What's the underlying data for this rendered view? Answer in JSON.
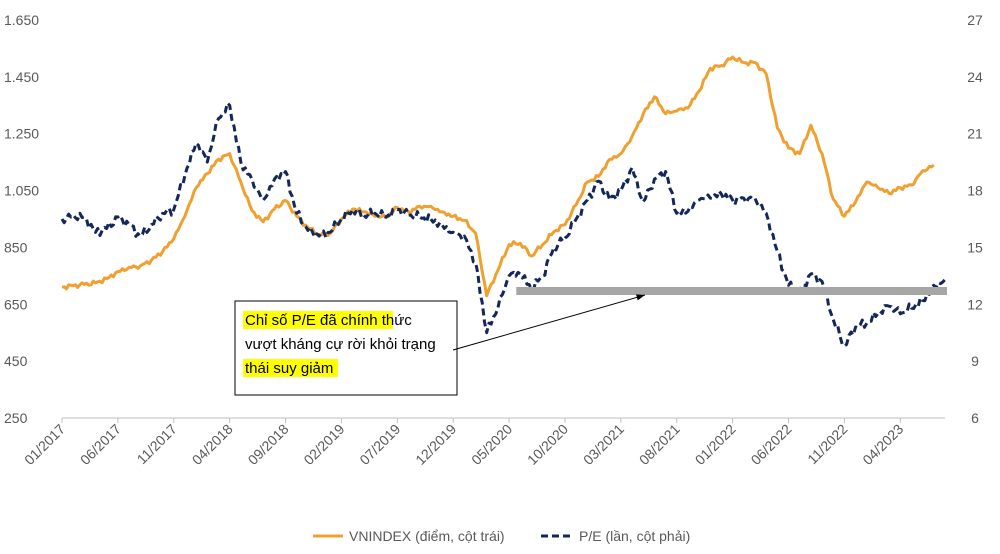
{
  "chart_data": {
    "type": "line",
    "left_axis": {
      "ylim": [
        250,
        1650
      ],
      "ticks": [
        "1.650",
        "1.450",
        "1.250",
        "1.050",
        "850",
        "650",
        "450",
        "250"
      ],
      "tick_values": [
        1650,
        1450,
        1250,
        1050,
        850,
        650,
        450,
        250
      ]
    },
    "right_axis": {
      "ylim": [
        6,
        27
      ],
      "ticks": [
        "27",
        "24",
        "21",
        "18",
        "15",
        "12",
        "9",
        "6"
      ],
      "tick_values": [
        27,
        24,
        21,
        18,
        15,
        12,
        9,
        6
      ]
    },
    "x_ticks": [
      "01/2017",
      "06/2017",
      "11/2017",
      "04/2018",
      "09/2018",
      "02/2019",
      "07/2019",
      "12/2019",
      "05/2020",
      "10/2020",
      "03/2021",
      "08/2021",
      "01/2022",
      "06/2022",
      "11/2022",
      "04/2023"
    ],
    "x_range": [
      "2017-01",
      "2023-08"
    ],
    "grid": false,
    "legend_position": "bottom",
    "series": [
      {
        "name": "VNINDEX (điểm, cột trái)",
        "axis": "left",
        "color": "#F0A030",
        "style": "solid",
        "points": [
          [
            "2017-01",
            710
          ],
          [
            "2017-02",
            715
          ],
          [
            "2017-03",
            720
          ],
          [
            "2017-04",
            725
          ],
          [
            "2017-05",
            740
          ],
          [
            "2017-06",
            765
          ],
          [
            "2017-07",
            780
          ],
          [
            "2017-08",
            785
          ],
          [
            "2017-09",
            805
          ],
          [
            "2017-10",
            835
          ],
          [
            "2017-11",
            880
          ],
          [
            "2017-12",
            960
          ],
          [
            "2018-01",
            1060
          ],
          [
            "2018-02",
            1110
          ],
          [
            "2018-03",
            1160
          ],
          [
            "2018-04",
            1180
          ],
          [
            "2018-05",
            1080
          ],
          [
            "2018-06",
            980
          ],
          [
            "2018-07",
            940
          ],
          [
            "2018-08",
            985
          ],
          [
            "2018-09",
            1015
          ],
          [
            "2018-10",
            960
          ],
          [
            "2018-11",
            920
          ],
          [
            "2018-12",
            895
          ],
          [
            "2019-01",
            900
          ],
          [
            "2019-02",
            950
          ],
          [
            "2019-03",
            985
          ],
          [
            "2019-04",
            975
          ],
          [
            "2019-05",
            960
          ],
          [
            "2019-06",
            955
          ],
          [
            "2019-07",
            990
          ],
          [
            "2019-08",
            975
          ],
          [
            "2019-09",
            995
          ],
          [
            "2019-10",
            995
          ],
          [
            "2019-11",
            975
          ],
          [
            "2019-12",
            960
          ],
          [
            "2020-01",
            945
          ],
          [
            "2020-02",
            900
          ],
          [
            "2020-03",
            680
          ],
          [
            "2020-04",
            770
          ],
          [
            "2020-05",
            860
          ],
          [
            "2020-06",
            865
          ],
          [
            "2020-07",
            820
          ],
          [
            "2020-08",
            860
          ],
          [
            "2020-09",
            905
          ],
          [
            "2020-10",
            930
          ],
          [
            "2020-11",
            1000
          ],
          [
            "2020-12",
            1080
          ],
          [
            "2021-01",
            1100
          ],
          [
            "2021-02",
            1160
          ],
          [
            "2021-03",
            1180
          ],
          [
            "2021-04",
            1240
          ],
          [
            "2021-05",
            1320
          ],
          [
            "2021-06",
            1380
          ],
          [
            "2021-07",
            1320
          ],
          [
            "2021-08",
            1330
          ],
          [
            "2021-09",
            1340
          ],
          [
            "2021-10",
            1400
          ],
          [
            "2021-11",
            1480
          ],
          [
            "2021-12",
            1490
          ],
          [
            "2022-01",
            1520
          ],
          [
            "2022-02",
            1500
          ],
          [
            "2022-03",
            1500
          ],
          [
            "2022-04",
            1460
          ],
          [
            "2022-05",
            1270
          ],
          [
            "2022-06",
            1200
          ],
          [
            "2022-07",
            1180
          ],
          [
            "2022-08",
            1280
          ],
          [
            "2022-09",
            1180
          ],
          [
            "2022-10",
            1020
          ],
          [
            "2022-11",
            960
          ],
          [
            "2022-12",
            1010
          ],
          [
            "2023-01",
            1080
          ],
          [
            "2023-02",
            1060
          ],
          [
            "2023-03",
            1040
          ],
          [
            "2023-04",
            1060
          ],
          [
            "2023-05",
            1070
          ],
          [
            "2023-06",
            1120
          ],
          [
            "2023-07",
            1140
          ]
        ]
      },
      {
        "name": "P/E (lần, cột phải)",
        "axis": "right",
        "color": "#14275A",
        "style": "dashed",
        "points": [
          [
            "2017-01",
            16.5
          ],
          [
            "2017-02",
            16.7
          ],
          [
            "2017-03",
            16.6
          ],
          [
            "2017-04",
            15.8
          ],
          [
            "2017-05",
            16.0
          ],
          [
            "2017-06",
            16.6
          ],
          [
            "2017-07",
            16.2
          ],
          [
            "2017-08",
            15.6
          ],
          [
            "2017-09",
            16.2
          ],
          [
            "2017-10",
            16.8
          ],
          [
            "2017-11",
            17.0
          ],
          [
            "2017-12",
            18.8
          ],
          [
            "2018-01",
            20.5
          ],
          [
            "2018-02",
            19.5
          ],
          [
            "2018-03",
            21.8
          ],
          [
            "2018-04",
            22.5
          ],
          [
            "2018-05",
            19.5
          ],
          [
            "2018-06",
            18.6
          ],
          [
            "2018-07",
            17.5
          ],
          [
            "2018-08",
            18.6
          ],
          [
            "2018-09",
            19.0
          ],
          [
            "2018-10",
            16.8
          ],
          [
            "2018-11",
            15.9
          ],
          [
            "2018-12",
            15.6
          ],
          [
            "2019-01",
            15.8
          ],
          [
            "2019-02",
            16.5
          ],
          [
            "2019-03",
            17.0
          ],
          [
            "2019-04",
            16.7
          ],
          [
            "2019-05",
            16.8
          ],
          [
            "2019-06",
            16.6
          ],
          [
            "2019-07",
            17.0
          ],
          [
            "2019-08",
            16.7
          ],
          [
            "2019-09",
            16.6
          ],
          [
            "2019-10",
            16.5
          ],
          [
            "2019-11",
            16.2
          ],
          [
            "2019-12",
            15.8
          ],
          [
            "2020-01",
            15.6
          ],
          [
            "2020-02",
            14.2
          ],
          [
            "2020-03",
            10.5
          ],
          [
            "2020-04",
            11.8
          ],
          [
            "2020-05",
            13.5
          ],
          [
            "2020-06",
            13.6
          ],
          [
            "2020-07",
            12.8
          ],
          [
            "2020-08",
            13.5
          ],
          [
            "2020-09",
            15.0
          ],
          [
            "2020-10",
            15.5
          ],
          [
            "2020-11",
            16.5
          ],
          [
            "2020-12",
            17.5
          ],
          [
            "2021-01",
            18.5
          ],
          [
            "2021-02",
            17.5
          ],
          [
            "2021-03",
            18.0
          ],
          [
            "2021-04",
            19.2
          ],
          [
            "2021-05",
            17.4
          ],
          [
            "2021-06",
            18.6
          ],
          [
            "2021-07",
            19.0
          ],
          [
            "2021-08",
            16.8
          ],
          [
            "2021-09",
            16.9
          ],
          [
            "2021-10",
            17.5
          ],
          [
            "2021-11",
            17.6
          ],
          [
            "2021-12",
            17.8
          ],
          [
            "2022-01",
            17.5
          ],
          [
            "2022-02",
            17.6
          ],
          [
            "2022-03",
            17.6
          ],
          [
            "2022-04",
            16.8
          ],
          [
            "2022-05",
            14.8
          ],
          [
            "2022-06",
            13.0
          ],
          [
            "2022-07",
            12.6
          ],
          [
            "2022-08",
            13.6
          ],
          [
            "2022-09",
            13.2
          ],
          [
            "2022-10",
            11.2
          ],
          [
            "2022-11",
            9.8
          ],
          [
            "2022-12",
            10.8
          ],
          [
            "2023-01",
            11.0
          ],
          [
            "2023-02",
            11.5
          ],
          [
            "2023-03",
            11.9
          ],
          [
            "2023-04",
            11.5
          ],
          [
            "2023-05",
            11.8
          ],
          [
            "2023-06",
            12.2
          ],
          [
            "2023-07",
            13.0
          ],
          [
            "2023-08",
            13.3
          ]
        ]
      }
    ],
    "reference_band": {
      "from": "2020-06",
      "to": "2023-08",
      "value": 12.7,
      "axis": "right",
      "color": "#A6A6A6"
    },
    "annotation": {
      "lines": [
        "Chỉ số P/E đã chính thức",
        "vượt kháng cự rời khỏi trạng",
        "thái suy giảm"
      ],
      "highlight_color": "#FFFF00"
    }
  }
}
